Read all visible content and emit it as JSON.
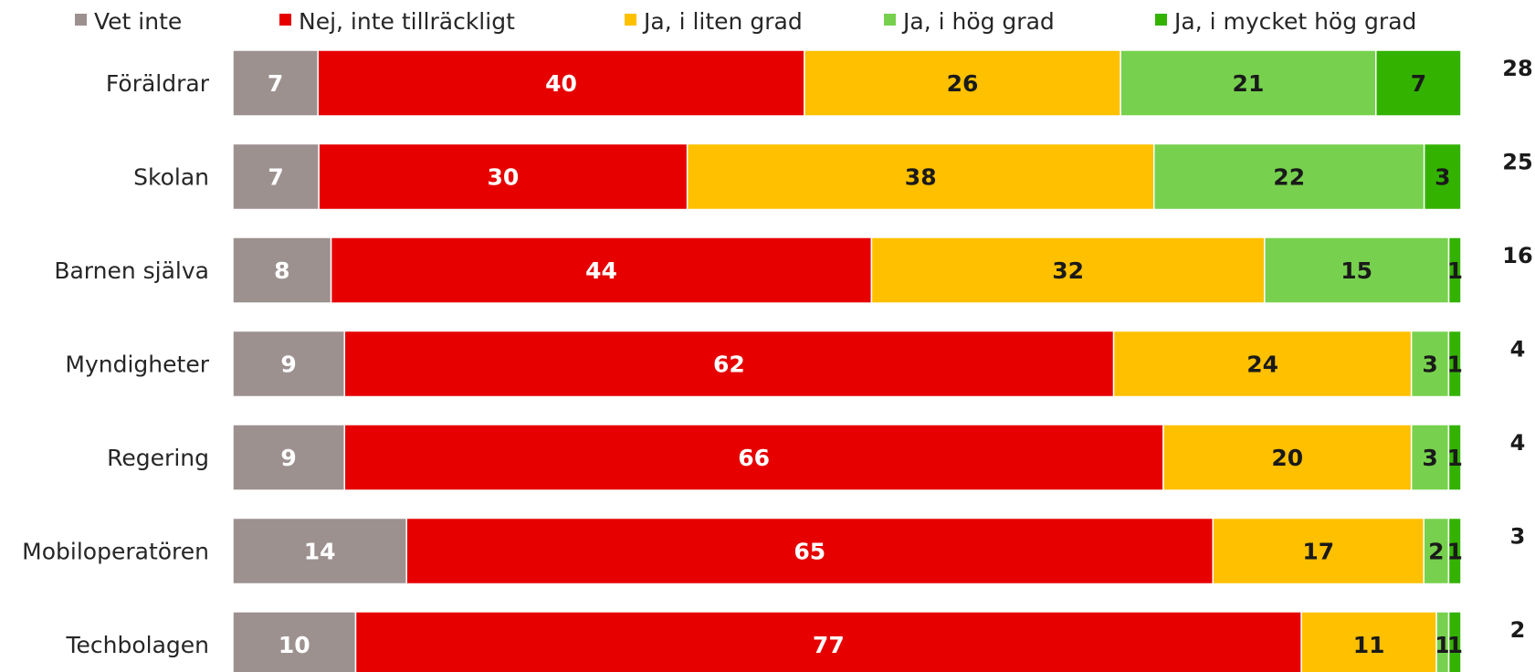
{
  "chart_data": {
    "type": "bar",
    "orientation": "horizontal",
    "stacked": true,
    "normalized": true,
    "grid": false,
    "legend_position": "top",
    "categories": [
      "Föräldrar",
      "Skolan",
      "Barnen själva",
      "Myndigheter",
      "Regering",
      "Mobiloperatören",
      "Techbolagen"
    ],
    "series": [
      {
        "name": "Vet inte",
        "color": "#9d9190",
        "label_color": "#ffffff",
        "values": [
          7,
          7,
          8,
          9,
          9,
          14,
          10
        ]
      },
      {
        "name": "Nej, inte tillräckligt",
        "color": "#e60000",
        "label_color": "#ffffff",
        "values": [
          40,
          30,
          44,
          62,
          66,
          65,
          77
        ]
      },
      {
        "name": "Ja, i liten grad",
        "color": "#ffc000",
        "label_color": "#1a1a1a",
        "values": [
          26,
          38,
          32,
          24,
          20,
          17,
          11
        ]
      },
      {
        "name": "Ja, i hög grad",
        "color": "#77d14e",
        "label_color": "#1a1a1a",
        "values": [
          21,
          22,
          15,
          3,
          3,
          2,
          1
        ]
      },
      {
        "name": "Ja, i mycket hög grad",
        "color": "#33b300",
        "label_color": "#1a1a1a",
        "values": [
          7,
          3,
          1,
          1,
          1,
          1,
          1
        ]
      }
    ],
    "totals": [
      "28",
      "25",
      "16",
      "4",
      "4",
      "3",
      "2"
    ]
  }
}
